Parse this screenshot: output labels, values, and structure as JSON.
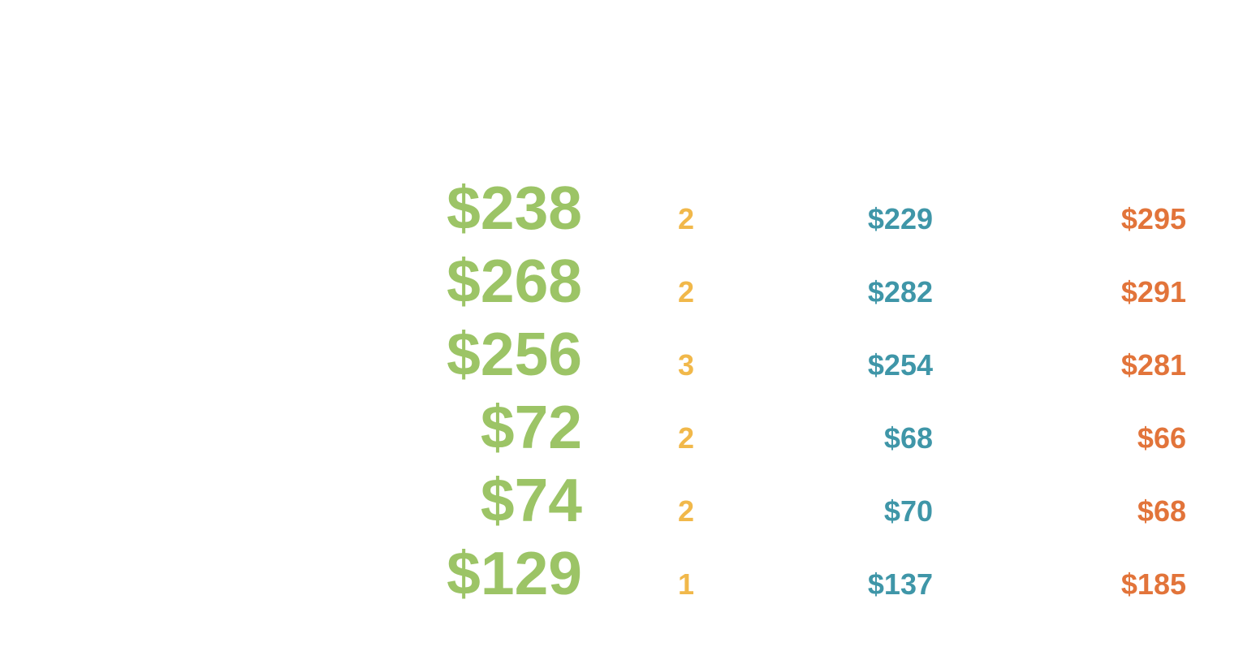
{
  "table": {
    "rows": [
      [
        "$238",
        "2",
        "$229",
        "$295"
      ],
      [
        "$268",
        "2",
        "$282",
        "$291"
      ],
      [
        "$256",
        "3",
        "$254",
        "$281"
      ],
      [
        "$72",
        "2",
        "$68",
        "$66"
      ],
      [
        "$74",
        "2",
        "$70",
        "$68"
      ],
      [
        "$129",
        "1",
        "$137",
        "$185"
      ]
    ]
  }
}
